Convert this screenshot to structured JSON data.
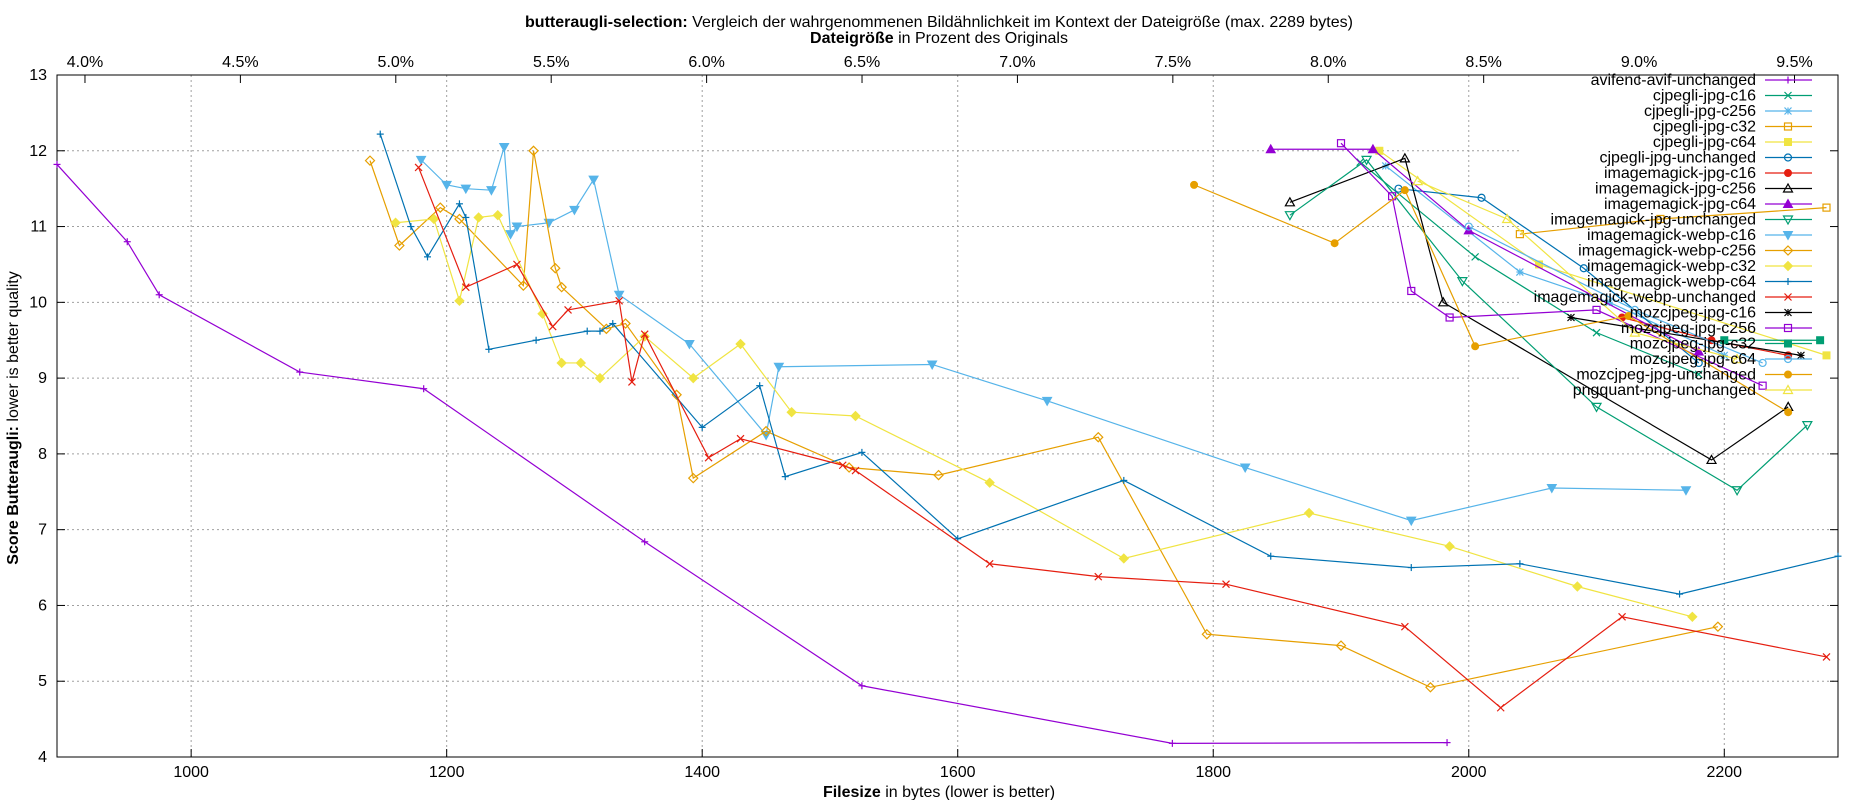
{
  "chart_data": {
    "type": "line",
    "title_bold": "butteraugli-selection:",
    "title_rest": "Vergleich der wahrgenommenen Bildähnlichkeit im Kontext der Dateigröße (max. 2289 bytes)",
    "x2_label_bold": "Dateigröße",
    "x2_label_rest": "in Prozent des Originals",
    "xlabel_bold": "Filesize",
    "xlabel_rest": "in bytes (lower is better)",
    "ylabel_bold": "Score Butteraugli:",
    "ylabel_rest": "lower is better quality",
    "xlim": [
      895,
      2289
    ],
    "ylim": [
      4,
      13
    ],
    "x2lim": [
      3.91,
      9.64
    ],
    "x_ticks": [
      "1000",
      "1200",
      "1400",
      "1600",
      "1800",
      "2000",
      "2200"
    ],
    "x_tick_values": [
      1000,
      1200,
      1400,
      1600,
      1800,
      2000,
      2200
    ],
    "y_ticks": [
      "4",
      "5",
      "6",
      "7",
      "8",
      "9",
      "10",
      "11",
      "12",
      "13"
    ],
    "y_tick_values": [
      4,
      5,
      6,
      7,
      8,
      9,
      10,
      11,
      12,
      13
    ],
    "x2_ticks": [
      "4.0%",
      "4.5%",
      "5.0%",
      "5.5%",
      "6.0%",
      "6.5%",
      "7.0%",
      "7.5%",
      "8.0%",
      "8.5%",
      "9.0%",
      "9.5%"
    ],
    "x2_tick_values": [
      4.0,
      4.5,
      5.0,
      5.5,
      6.0,
      6.5,
      7.0,
      7.5,
      8.0,
      8.5,
      9.0,
      9.5
    ],
    "grid": true,
    "legend_position": "top-right",
    "series": [
      {
        "name": "avifenc-avif-unchanged",
        "color": "#9400d3",
        "marker": "plus",
        "x": [
          895,
          950,
          975,
          1085,
          1182,
          1355,
          1525,
          1768,
          1983
        ],
        "y": [
          11.82,
          10.8,
          10.1,
          9.08,
          8.86,
          6.84,
          4.94,
          4.18,
          4.19
        ]
      },
      {
        "name": "cjpegli-jpg-c16",
        "color": "#009e73",
        "marker": "x",
        "x": [
          1915,
          2005,
          2100,
          2180
        ],
        "y": [
          11.85,
          10.6,
          9.6,
          9.05
        ]
      },
      {
        "name": "cjpegli-jpg-c256",
        "color": "#56b4e9",
        "marker": "star",
        "x": [
          1935,
          2040,
          2110,
          2200
        ],
        "y": [
          11.8,
          10.4,
          10.0,
          9.3
        ]
      },
      {
        "name": "cjpegli-jpg-c32",
        "color": "#e69f00",
        "marker": "box",
        "x": [
          2040,
          2150,
          2280
        ],
        "y": [
          10.9,
          11.1,
          11.25
        ]
      },
      {
        "name": "cjpegli-jpg-c64",
        "color": "#f0e442",
        "marker": "fbox",
        "x": [
          1930,
          2055,
          2280
        ],
        "y": [
          12.0,
          10.5,
          9.3
        ]
      },
      {
        "name": "cjpegli-jpg-unchanged",
        "color": "#0072b2",
        "marker": "circle",
        "x": [
          1945,
          2010,
          2090,
          2180
        ],
        "y": [
          11.5,
          11.38,
          10.45,
          9.2
        ]
      },
      {
        "name": "imagemagick-jpg-c16",
        "color": "#e51e10",
        "marker": "fcircle",
        "x": [
          2120,
          2190,
          2250
        ],
        "y": [
          9.8,
          9.5,
          9.3
        ]
      },
      {
        "name": "imagemagick-jpg-c256",
        "color": "#000000",
        "marker": "triangle",
        "x": [
          1860,
          1950,
          1980,
          2190,
          2250
        ],
        "y": [
          11.32,
          11.9,
          10.0,
          7.92,
          8.62
        ]
      },
      {
        "name": "imagemagick-jpg-c64",
        "color": "#9400d3",
        "marker": "ftriangle",
        "x": [
          1845,
          1925,
          2000,
          2180
        ],
        "y": [
          12.02,
          12.02,
          10.95,
          9.35
        ]
      },
      {
        "name": "imagemagick-jpg-unchanged",
        "color": "#009e73",
        "marker": "itriangle",
        "x": [
          1860,
          1920,
          1995,
          2100,
          2210,
          2265
        ],
        "y": [
          11.15,
          11.88,
          10.28,
          8.62,
          7.52,
          8.38
        ]
      },
      {
        "name": "imagemagick-webp-c16",
        "color": "#56b4e9",
        "marker": "fitriangle",
        "x": [
          1180,
          1200,
          1215,
          1235,
          1245,
          1250,
          1255,
          1280,
          1300,
          1315,
          1335,
          1390,
          1450,
          1460,
          1580,
          1670,
          1825,
          1955,
          2065,
          2170
        ],
        "y": [
          11.88,
          11.55,
          11.5,
          11.48,
          12.05,
          10.9,
          11.0,
          11.05,
          11.22,
          11.62,
          10.1,
          9.45,
          8.25,
          9.15,
          9.18,
          8.7,
          7.82,
          7.12,
          7.55,
          7.52
        ],
        "fit_tail": [
          [
            1390,
            9.72
          ]
        ]
      },
      {
        "name": "imagemagick-webp-c256",
        "color": "#e69f00",
        "marker": "diamond",
        "x": [
          1140,
          1163,
          1195,
          1210,
          1260,
          1268,
          1285,
          1290,
          1325,
          1340,
          1380,
          1393,
          1450,
          1515,
          1585,
          1710,
          1795,
          1900,
          1970,
          2195
        ],
        "y": [
          11.87,
          10.75,
          11.25,
          11.1,
          10.22,
          12.0,
          10.45,
          10.2,
          9.65,
          9.72,
          8.78,
          7.68,
          8.3,
          7.82,
          7.72,
          8.22,
          5.62,
          5.47,
          4.92,
          5.72
        ]
      },
      {
        "name": "imagemagick-webp-c32",
        "color": "#f0e442",
        "marker": "fdiamond",
        "x": [
          1160,
          1190,
          1210,
          1225,
          1240,
          1275,
          1290,
          1305,
          1320,
          1355,
          1393,
          1430,
          1470,
          1520,
          1625,
          1730,
          1875,
          1985,
          2085,
          2175
        ],
        "y": [
          11.05,
          11.1,
          10.02,
          11.12,
          11.15,
          9.85,
          9.2,
          9.2,
          9.0,
          9.55,
          9.0,
          9.45,
          8.55,
          8.5,
          7.62,
          6.62,
          7.22,
          6.78,
          6.25,
          5.85
        ]
      },
      {
        "name": "imagemagick-webp-c64",
        "color": "#0072b2",
        "marker": "plus",
        "x": [
          1148,
          1172,
          1185,
          1210,
          1215,
          1233,
          1270,
          1310,
          1320,
          1330,
          1400,
          1445,
          1465,
          1525,
          1600,
          1730,
          1845,
          1955,
          2040,
          2165,
          2289
        ],
        "y": [
          12.22,
          11.0,
          10.6,
          11.3,
          11.12,
          9.38,
          9.5,
          9.62,
          9.62,
          9.72,
          8.35,
          8.9,
          7.7,
          8.02,
          6.88,
          7.65,
          6.65,
          6.5,
          6.55,
          6.15,
          6.65
        ]
      },
      {
        "name": "imagemagick-webp-unchanged",
        "color": "#e51e10",
        "marker": "x",
        "x": [
          1178,
          1215,
          1255,
          1283,
          1295,
          1335,
          1345,
          1355,
          1405,
          1430,
          1510,
          1520,
          1625,
          1710,
          1810,
          1950,
          2025,
          2120,
          2280
        ],
        "y": [
          11.78,
          10.2,
          10.5,
          9.68,
          9.9,
          10.02,
          8.95,
          9.58,
          7.95,
          8.2,
          7.85,
          7.78,
          6.55,
          6.38,
          6.28,
          5.72,
          4.65,
          5.85,
          5.32
        ]
      },
      {
        "name": "mozcjpeg-jpg-c16",
        "color": "#000000",
        "marker": "star",
        "x": [
          2080,
          2260
        ],
        "y": [
          9.8,
          9.3
        ]
      },
      {
        "name": "mozcjpeg-jpg-c256",
        "color": "#9400d3",
        "marker": "box",
        "x": [
          1900,
          1940,
          1955,
          1985,
          2100,
          2230
        ],
        "y": [
          12.1,
          11.4,
          10.15,
          9.8,
          9.9,
          8.9
        ]
      },
      {
        "name": "mozcjpeg-jpg-c32",
        "color": "#009e73",
        "marker": "fbox",
        "x": [
          2200,
          2275
        ],
        "y": [
          9.5,
          9.5
        ]
      },
      {
        "name": "mozcjpeg-jpg-c64",
        "color": "#56b4e9",
        "marker": "circle",
        "x": [
          2000,
          2130,
          2230
        ],
        "y": [
          11.0,
          9.9,
          9.2
        ]
      },
      {
        "name": "mozcjpeg-jpg-unchanged",
        "color": "#e69f00",
        "marker": "fcircle",
        "x": [
          1785,
          1895,
          1950,
          2005,
          2125,
          2250
        ],
        "y": [
          11.55,
          10.78,
          11.48,
          9.42,
          9.82,
          8.55
        ]
      },
      {
        "name": "pngquant-png-unchanged",
        "color": "#f0e442",
        "marker": "triangle",
        "x": [
          1960,
          2030,
          2130,
          2210
        ],
        "y": [
          11.6,
          11.1,
          9.6,
          9.25
        ]
      }
    ]
  }
}
